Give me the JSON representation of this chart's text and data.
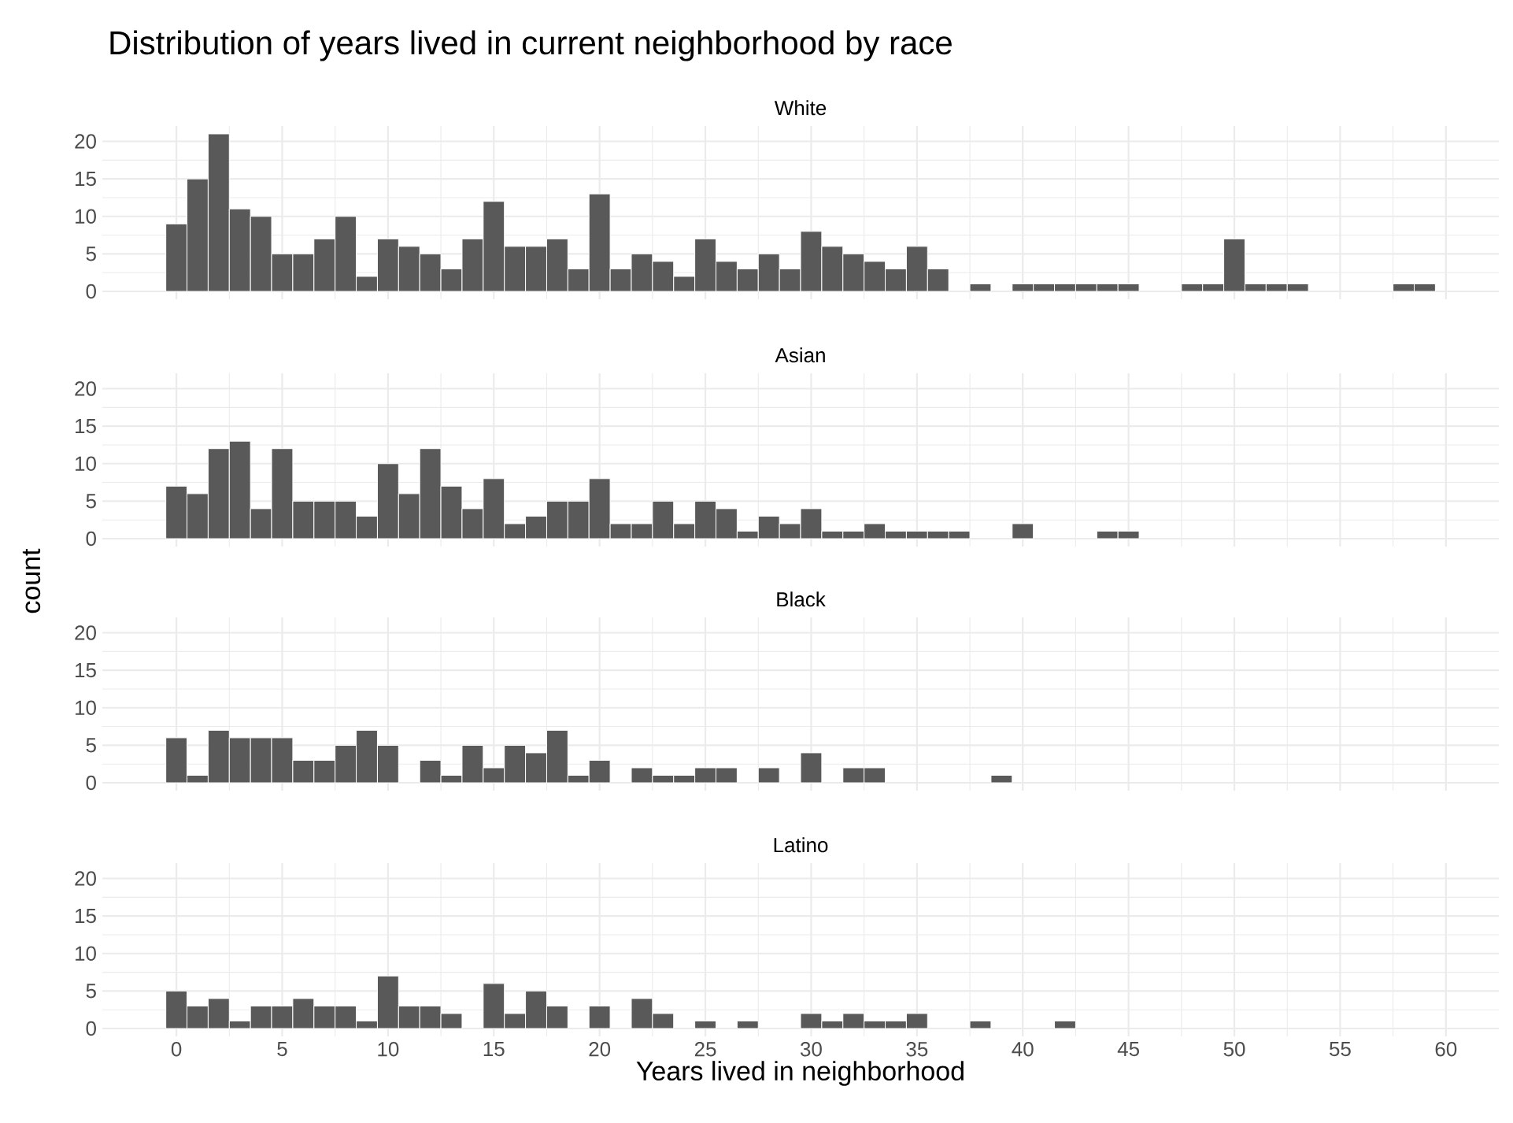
{
  "chart_data": [
    {
      "type": "histogram",
      "title": "Distribution of years lived in current neighborhood by race",
      "subtitle": "White",
      "color": "#595959",
      "bins": [
        -0.5,
        0.5,
        1.5,
        2.5,
        3.5,
        4.5,
        5.5,
        6.5,
        7.5,
        8.5,
        9.5,
        10.5,
        11.5,
        12.5,
        13.5,
        14.5,
        15.5,
        16.5,
        17.5,
        18.5,
        19.5,
        20.5,
        21.5,
        22.5,
        23.5,
        24.5,
        25.5,
        26.5,
        27.5,
        28.5,
        29.5,
        30.5,
        31.5,
        32.5,
        33.5,
        34.5,
        35.5,
        36.5,
        37.5,
        38.5,
        39.5,
        40.5,
        41.5,
        42.5,
        43.5,
        44.5,
        45.5,
        46.5,
        47.5,
        48.5,
        49.5,
        50.5,
        51.5,
        52.5,
        53.5,
        54.5,
        55.5,
        56.5,
        57.5,
        58.5,
        59.5
      ],
      "values": [
        9,
        15,
        21,
        11,
        10,
        5,
        5,
        7,
        10,
        2,
        7,
        6,
        5,
        3,
        7,
        12,
        6,
        6,
        7,
        3,
        13,
        3,
        5,
        4,
        2,
        7,
        4,
        3,
        5,
        3,
        8,
        6,
        5,
        4,
        3,
        6,
        3,
        0,
        1,
        0,
        1,
        1,
        1,
        1,
        1,
        1,
        0,
        0,
        1,
        1,
        7,
        1,
        1,
        1,
        0,
        0,
        0,
        0,
        1,
        1
      ],
      "xlim": [
        -3.5,
        62.5
      ],
      "ylim": [
        -1.05,
        22.05
      ],
      "xticks": [
        0,
        5,
        10,
        15,
        20,
        25,
        30,
        35,
        40,
        45,
        50,
        55,
        60
      ],
      "yticks": [
        0,
        5,
        10,
        15,
        20
      ],
      "grid": true,
      "tick_labels": "y"
    },
    {
      "type": "histogram",
      "subtitle": "Asian",
      "ylabel": "count",
      "color": "#595959",
      "bins": [
        -0.5,
        0.5,
        1.5,
        2.5,
        3.5,
        4.5,
        5.5,
        6.5,
        7.5,
        8.5,
        9.5,
        10.5,
        11.5,
        12.5,
        13.5,
        14.5,
        15.5,
        16.5,
        17.5,
        18.5,
        19.5,
        20.5,
        21.5,
        22.5,
        23.5,
        24.5,
        25.5,
        26.5,
        27.5,
        28.5,
        29.5,
        30.5,
        31.5,
        32.5,
        33.5,
        34.5,
        35.5,
        36.5,
        37.5,
        38.5,
        39.5,
        40.5,
        41.5,
        42.5,
        43.5,
        44.5,
        45.5
      ],
      "values": [
        7,
        6,
        12,
        13,
        4,
        12,
        5,
        5,
        5,
        3,
        10,
        6,
        12,
        7,
        4,
        8,
        2,
        3,
        5,
        5,
        8,
        2,
        2,
        5,
        2,
        5,
        4,
        1,
        3,
        2,
        4,
        1,
        1,
        2,
        1,
        1,
        1,
        1,
        0,
        0,
        2,
        0,
        0,
        0,
        1,
        1
      ],
      "xlim": [
        -3.5,
        62.5
      ],
      "ylim": [
        -1.05,
        22.05
      ],
      "xticks": [
        0,
        5,
        10,
        15,
        20,
        25,
        30,
        35,
        40,
        45,
        50,
        55,
        60
      ],
      "yticks": [
        0,
        5,
        10,
        15,
        20
      ],
      "grid": true,
      "tick_labels": "y"
    },
    {
      "type": "histogram",
      "subtitle": "Black",
      "color": "#595959",
      "bins": [
        -0.5,
        0.5,
        1.5,
        2.5,
        3.5,
        4.5,
        5.5,
        6.5,
        7.5,
        8.5,
        9.5,
        10.5,
        11.5,
        12.5,
        13.5,
        14.5,
        15.5,
        16.5,
        17.5,
        18.5,
        19.5,
        20.5,
        21.5,
        22.5,
        23.5,
        24.5,
        25.5,
        26.5,
        27.5,
        28.5,
        29.5,
        30.5,
        31.5,
        32.5,
        33.5,
        34.5,
        35.5,
        36.5,
        37.5,
        38.5,
        39.5
      ],
      "values": [
        6,
        1,
        7,
        6,
        6,
        6,
        3,
        3,
        5,
        7,
        5,
        0,
        3,
        1,
        5,
        2,
        5,
        4,
        7,
        1,
        3,
        0,
        2,
        1,
        1,
        2,
        2,
        0,
        2,
        0,
        4,
        0,
        2,
        2,
        0,
        0,
        0,
        0,
        0,
        1
      ],
      "xlim": [
        -3.5,
        62.5
      ],
      "ylim": [
        -1.05,
        22.05
      ],
      "xticks": [
        0,
        5,
        10,
        15,
        20,
        25,
        30,
        35,
        40,
        45,
        50,
        55,
        60
      ],
      "yticks": [
        0,
        5,
        10,
        15,
        20
      ],
      "grid": true,
      "tick_labels": "y"
    },
    {
      "type": "histogram",
      "subtitle": "Latino",
      "xlabel": "Years lived in neighborhood",
      "color": "#595959",
      "bins": [
        -0.5,
        0.5,
        1.5,
        2.5,
        3.5,
        4.5,
        5.5,
        6.5,
        7.5,
        8.5,
        9.5,
        10.5,
        11.5,
        12.5,
        13.5,
        14.5,
        15.5,
        16.5,
        17.5,
        18.5,
        19.5,
        20.5,
        21.5,
        22.5,
        23.5,
        24.5,
        25.5,
        26.5,
        27.5,
        28.5,
        29.5,
        30.5,
        31.5,
        32.5,
        33.5,
        34.5,
        35.5,
        36.5,
        37.5,
        38.5,
        39.5,
        40.5,
        41.5,
        42.5
      ],
      "values": [
        5,
        3,
        4,
        1,
        3,
        3,
        4,
        3,
        3,
        1,
        7,
        3,
        3,
        2,
        0,
        6,
        2,
        5,
        3,
        0,
        3,
        0,
        4,
        2,
        0,
        1,
        0,
        1,
        0,
        0,
        2,
        1,
        2,
        1,
        1,
        2,
        0,
        0,
        1,
        0,
        0,
        0,
        1
      ],
      "xlim": [
        -3.5,
        62.5
      ],
      "ylim": [
        -1.05,
        22.05
      ],
      "xticks": [
        0,
        5,
        10,
        15,
        20,
        25,
        30,
        35,
        40,
        45,
        50,
        55,
        60
      ],
      "yticks": [
        0,
        5,
        10,
        15,
        20
      ],
      "grid": true
    }
  ]
}
